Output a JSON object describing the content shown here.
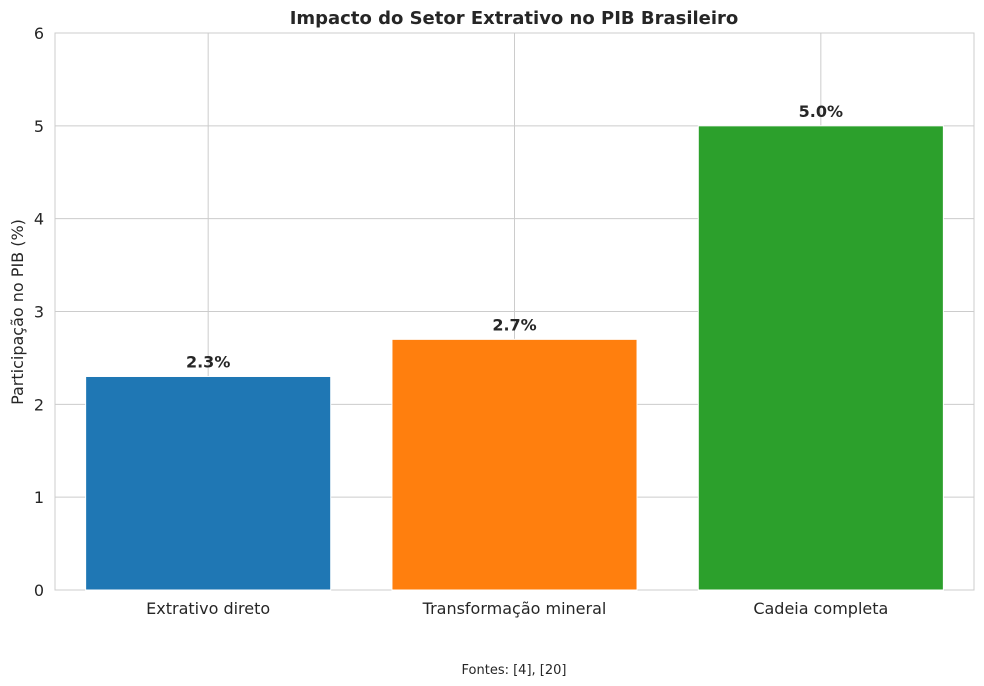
{
  "chart_data": {
    "type": "bar",
    "title": "Impacto do Setor Extrativo no PIB Brasileiro",
    "xlabel": "",
    "ylabel": "Participação no PIB (%)",
    "categories": [
      "Extrativo direto",
      "Transformação mineral",
      "Cadeia completa"
    ],
    "values": [
      2.3,
      2.7,
      5.0
    ],
    "data_labels": [
      "2.3%",
      "2.7%",
      "5.0%"
    ],
    "colors": [
      "#1f77b4",
      "#ff7f0e",
      "#2ca02c"
    ],
    "ylim": [
      0,
      6
    ],
    "yticks": [
      0,
      1,
      2,
      3,
      4,
      5,
      6
    ],
    "ytick_labels": [
      "0",
      "1",
      "2",
      "3",
      "4",
      "5",
      "6"
    ],
    "grid": true,
    "footnote": "Fontes: [4], [20]"
  }
}
